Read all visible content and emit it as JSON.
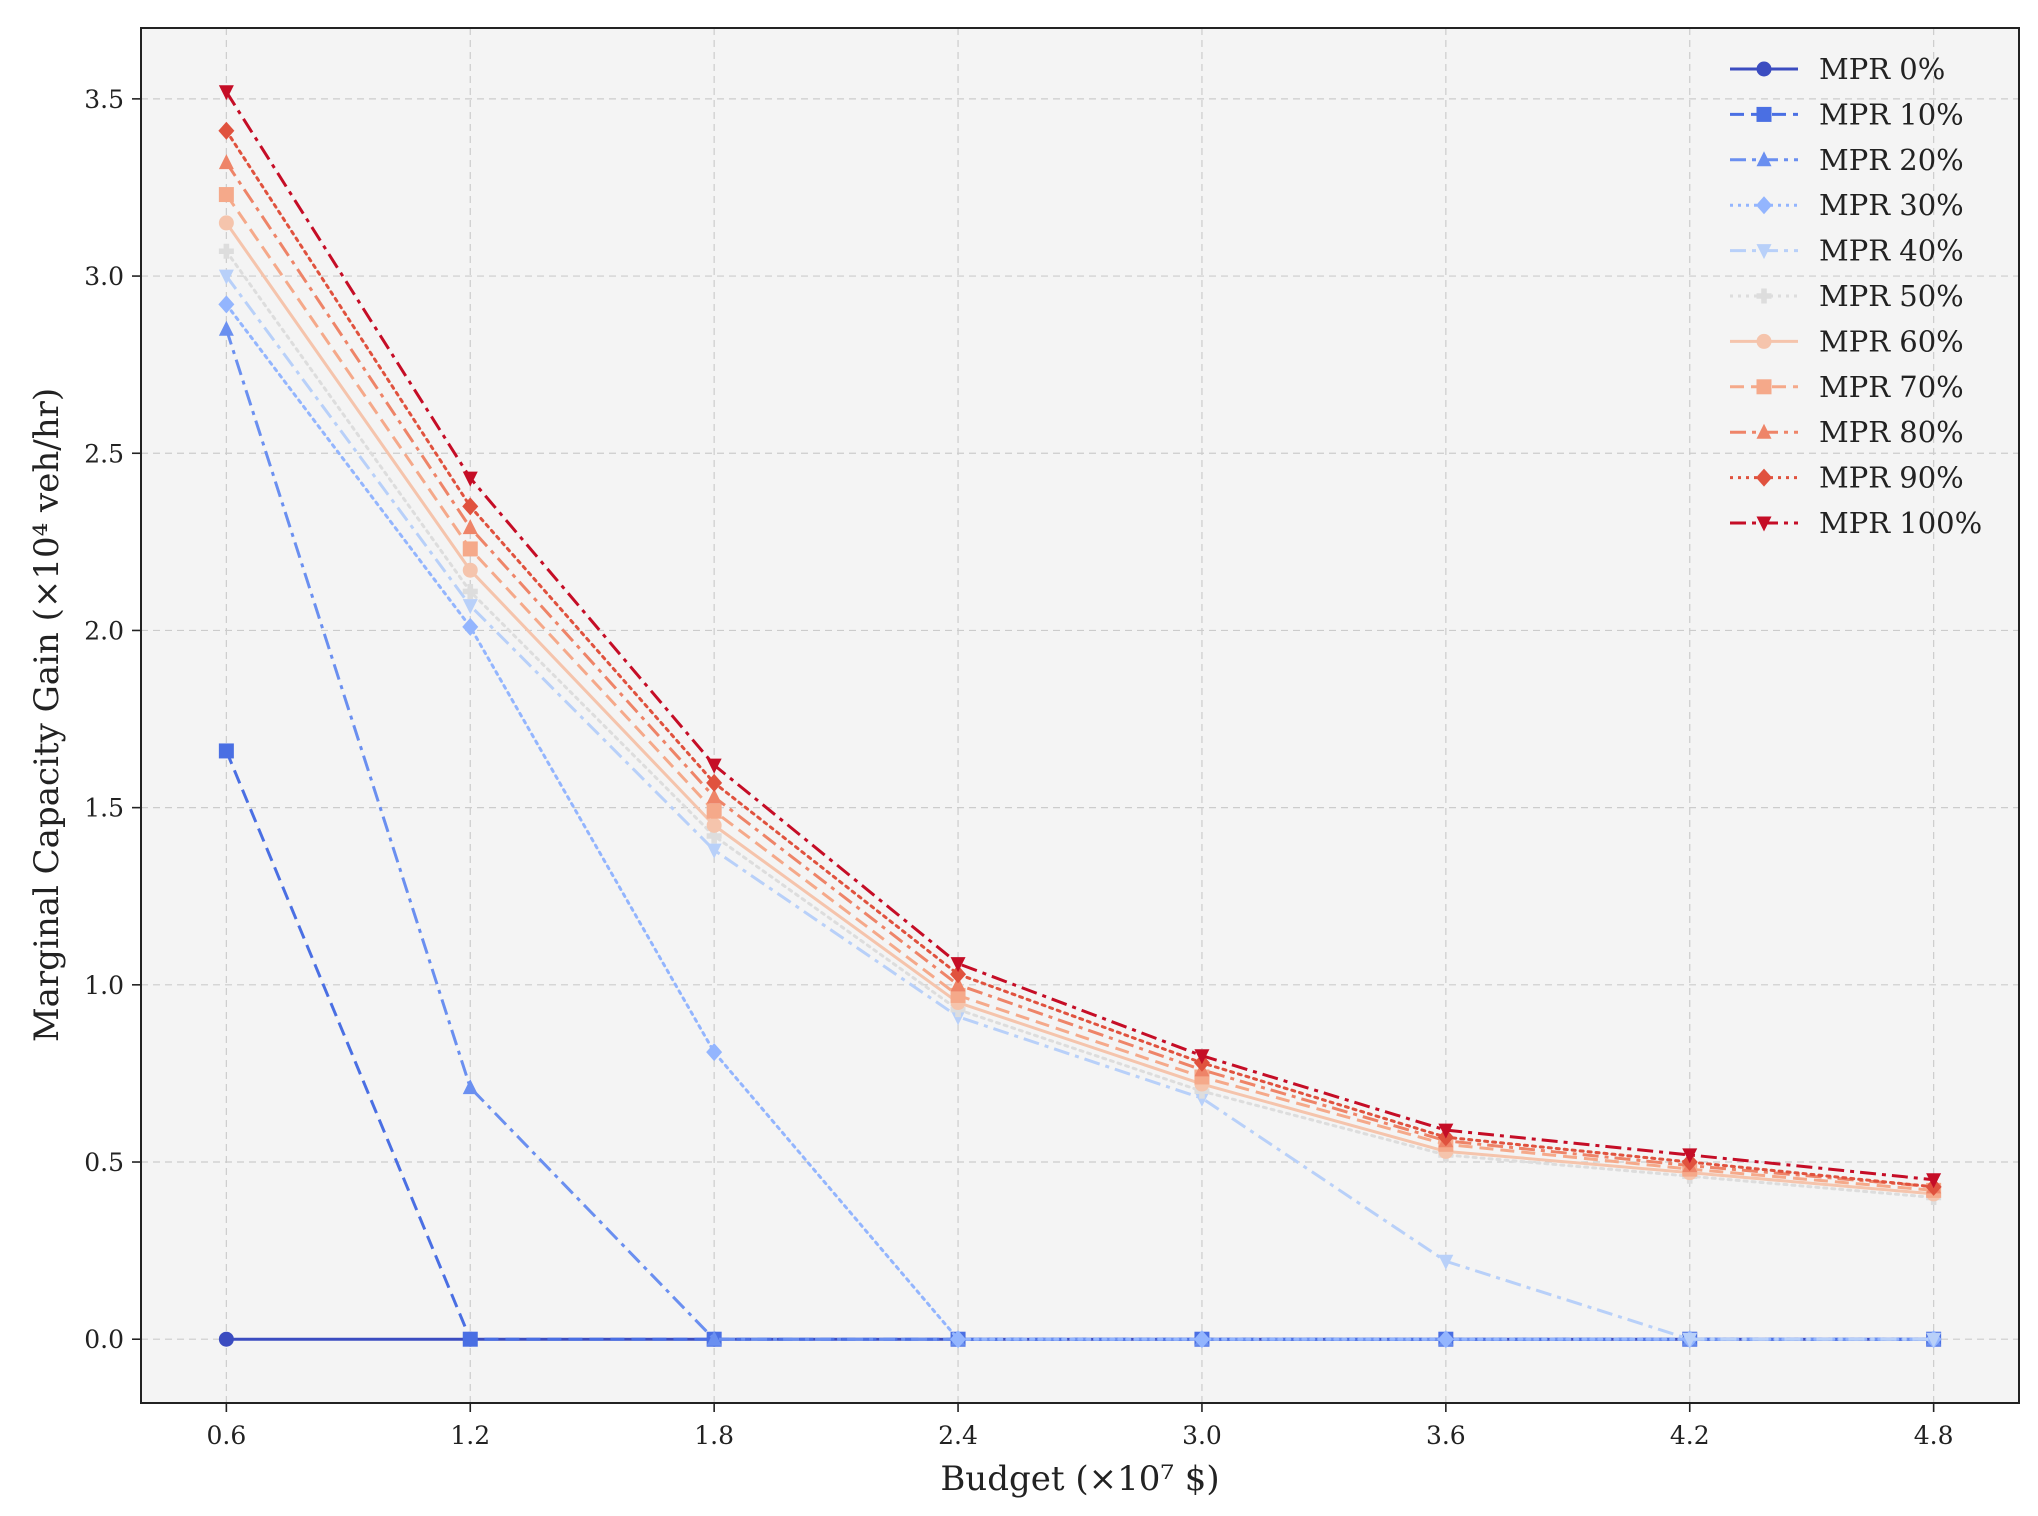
{
  "chart_data": {
    "type": "line",
    "title": "",
    "xlabel": "Budget (×10⁷ $)",
    "ylabel": "Marginal Capacity Gain (×10⁴ veh/hr)",
    "x": [
      0.6,
      1.2,
      1.8,
      2.4,
      3.0,
      3.6,
      4.2,
      4.8
    ],
    "xticks": [
      "0.6",
      "1.2",
      "1.8",
      "2.4",
      "3.0",
      "3.6",
      "4.2",
      "4.8"
    ],
    "yticks": [
      "0.0",
      "0.5",
      "1.0",
      "1.5",
      "2.0",
      "2.5",
      "3.0",
      "3.5"
    ],
    "xlim": [
      0.39,
      5.01
    ],
    "ylim": [
      -0.18,
      3.7
    ],
    "grid": true,
    "legend_position": "top-right",
    "series": [
      {
        "name": "MPR 0%",
        "color": "#3b4cc0",
        "marker": "circle",
        "dash": "solid",
        "values": [
          0.0,
          0.0,
          0.0,
          0.0,
          0.0,
          0.0,
          0.0,
          0.0
        ]
      },
      {
        "name": "MPR 10%",
        "color": "#4a6fe3",
        "marker": "square",
        "dash": "dashed",
        "values": [
          1.66,
          0.0,
          0.0,
          0.0,
          0.0,
          0.0,
          0.0,
          0.0
        ]
      },
      {
        "name": "MPR 20%",
        "color": "#6a8ff0",
        "marker": "triangle-up",
        "dash": "dashdot",
        "values": [
          2.85,
          0.71,
          0.0,
          0.0,
          0.0,
          0.0,
          0.0,
          0.0
        ]
      },
      {
        "name": "MPR 30%",
        "color": "#93b5fe",
        "marker": "diamond",
        "dash": "dotted",
        "values": [
          2.92,
          2.01,
          0.81,
          0.0,
          0.0,
          0.0,
          0.0,
          0.0
        ]
      },
      {
        "name": "MPR 40%",
        "color": "#b8d0f9",
        "marker": "triangle-down",
        "dash": "dashdot",
        "values": [
          3.0,
          2.07,
          1.38,
          0.91,
          0.68,
          0.22,
          0.0,
          0.0
        ]
      },
      {
        "name": "MPR 50%",
        "color": "#dddddd",
        "marker": "plus",
        "dash": "dotted",
        "values": [
          3.07,
          2.11,
          1.42,
          0.93,
          0.7,
          0.52,
          0.46,
          0.4
        ]
      },
      {
        "name": "MPR 60%",
        "color": "#f5c4ac",
        "marker": "circle",
        "dash": "solid",
        "values": [
          3.15,
          2.17,
          1.45,
          0.95,
          0.72,
          0.53,
          0.47,
          0.41
        ]
      },
      {
        "name": "MPR 70%",
        "color": "#f5a98a",
        "marker": "square",
        "dash": "dashed",
        "values": [
          3.23,
          2.23,
          1.49,
          0.97,
          0.74,
          0.55,
          0.48,
          0.42
        ]
      },
      {
        "name": "MPR 80%",
        "color": "#ee8468",
        "marker": "triangle-up",
        "dash": "dashdot",
        "values": [
          3.32,
          2.29,
          1.53,
          1.0,
          0.76,
          0.56,
          0.49,
          0.43
        ]
      },
      {
        "name": "MPR 90%",
        "color": "#e0523e",
        "marker": "diamond",
        "dash": "dotted",
        "values": [
          3.41,
          2.35,
          1.57,
          1.03,
          0.78,
          0.57,
          0.5,
          0.43
        ]
      },
      {
        "name": "MPR 100%",
        "color": "#c50d26",
        "marker": "triangle-down",
        "dash": "dashdot",
        "values": [
          3.52,
          2.43,
          1.62,
          1.06,
          0.8,
          0.59,
          0.52,
          0.45
        ]
      }
    ]
  }
}
